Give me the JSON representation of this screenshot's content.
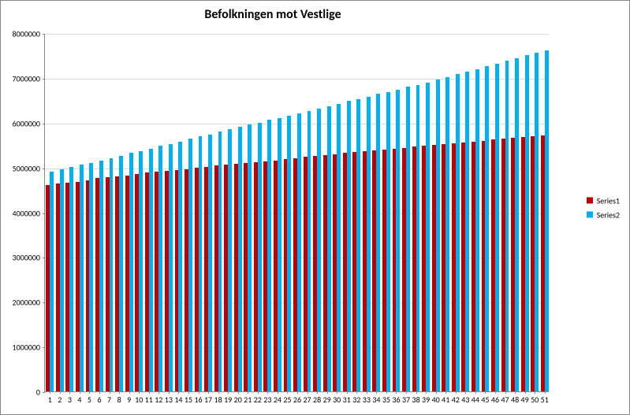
{
  "chart": {
    "type": "bar",
    "title": "Befolkningen mot Vestlige",
    "title_fontsize": 16,
    "title_weight": "bold",
    "background_color": "#ffffff",
    "grid_color": "#d9d9d9",
    "axis_color": "#888888",
    "tick_fontsize": 10,
    "ylim": [
      0,
      8000000
    ],
    "ytick_step": 1000000,
    "yticks": [
      0,
      1000000,
      2000000,
      3000000,
      4000000,
      5000000,
      6000000,
      7000000,
      8000000
    ],
    "categories": [
      "1",
      "2",
      "3",
      "4",
      "5",
      "6",
      "7",
      "8",
      "9",
      "10",
      "11",
      "12",
      "13",
      "14",
      "15",
      "16",
      "17",
      "18",
      "19",
      "20",
      "21",
      "22",
      "23",
      "24",
      "25",
      "26",
      "27",
      "28",
      "29",
      "30",
      "31",
      "32",
      "33",
      "34",
      "35",
      "36",
      "37",
      "38",
      "39",
      "40",
      "41",
      "42",
      "43",
      "44",
      "45",
      "46",
      "47",
      "48",
      "49",
      "50",
      "51"
    ],
    "series": [
      {
        "name": "Series1",
        "color": "#c00000",
        "values": [
          4600000,
          4640000,
          4660000,
          4680000,
          4720000,
          4760000,
          4780000,
          4800000,
          4820000,
          4860000,
          4880000,
          4900000,
          4920000,
          4940000,
          4960000,
          5000000,
          5020000,
          5040000,
          5060000,
          5080000,
          5100000,
          5120000,
          5140000,
          5160000,
          5180000,
          5200000,
          5240000,
          5260000,
          5280000,
          5300000,
          5320000,
          5340000,
          5360000,
          5380000,
          5400000,
          5420000,
          5440000,
          5460000,
          5480000,
          5500000,
          5520000,
          5540000,
          5560000,
          5580000,
          5600000,
          5620000,
          5640000,
          5660000,
          5680000,
          5700000,
          5720000
        ]
      },
      {
        "name": "Series2",
        "color": "#00b0f0",
        "values": [
          4900000,
          4960000,
          5020000,
          5060000,
          5100000,
          5160000,
          5200000,
          5260000,
          5320000,
          5360000,
          5420000,
          5480000,
          5520000,
          5580000,
          5640000,
          5700000,
          5740000,
          5800000,
          5860000,
          5900000,
          5960000,
          6000000,
          6060000,
          6100000,
          6160000,
          6200000,
          6260000,
          6320000,
          6360000,
          6420000,
          6480000,
          6520000,
          6580000,
          6640000,
          6680000,
          6740000,
          6800000,
          6840000,
          6900000,
          6960000,
          7020000,
          7080000,
          7140000,
          7200000,
          7260000,
          7320000,
          7380000,
          7440000,
          7500000,
          7560000,
          7620000
        ]
      }
    ],
    "bar_group_width": 0.78,
    "legend": {
      "fontsize": 10,
      "items": [
        "Series1",
        "Series2"
      ]
    }
  }
}
